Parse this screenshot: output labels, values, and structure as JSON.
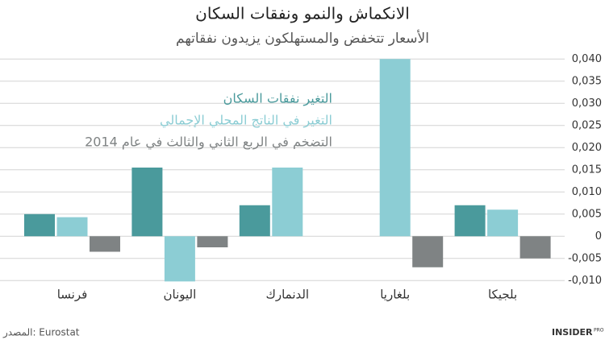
{
  "chart_data": {
    "type": "bar",
    "title": "الانكماش والنمو ونفقات السكان",
    "subtitle": "الأسعار تتخفض والمستهلكون يزيدون نفقاتهم",
    "source": "المصدر: Eurostat",
    "brand": "INSIDER",
    "brand_suffix": "PRO",
    "categories": [
      "فرنسا",
      "اليونان",
      "الدنمارك",
      "بلغاريا",
      "بلجيكا"
    ],
    "series": [
      {
        "name": "التغير نفقات السكان",
        "color": "#4a9a9c",
        "values": [
          0.005,
          0.0155,
          0.007,
          null,
          0.007
        ]
      },
      {
        "name": "التغير في الناتج المحلي الإجمالي",
        "color": "#8ccdd4",
        "values": [
          0.0043,
          -0.0102,
          0.0155,
          0.04,
          0.006
        ]
      },
      {
        "name": "التضخم في الربع الثاني والثالث في عام  2014",
        "color": "#7f8384",
        "values": [
          -0.0035,
          -0.0025,
          null,
          -0.007,
          -0.005
        ]
      }
    ],
    "ylim": [
      -0.0105,
      0.0415
    ],
    "yticks": [
      {
        "value": 0.04,
        "label": "0,040"
      },
      {
        "value": 0.035,
        "label": "0,035"
      },
      {
        "value": 0.03,
        "label": "0,030"
      },
      {
        "value": 0.025,
        "label": "0,025"
      },
      {
        "value": 0.02,
        "label": "0,020"
      },
      {
        "value": 0.015,
        "label": "0,015"
      },
      {
        "value": 0.01,
        "label": "0,010"
      },
      {
        "value": 0.005,
        "label": "0,005"
      },
      0,
      {
        "value": -0.005,
        "label": "-0,005"
      },
      {
        "value": -0.01,
        "label": "-0,010"
      }
    ],
    "grid": true
  }
}
